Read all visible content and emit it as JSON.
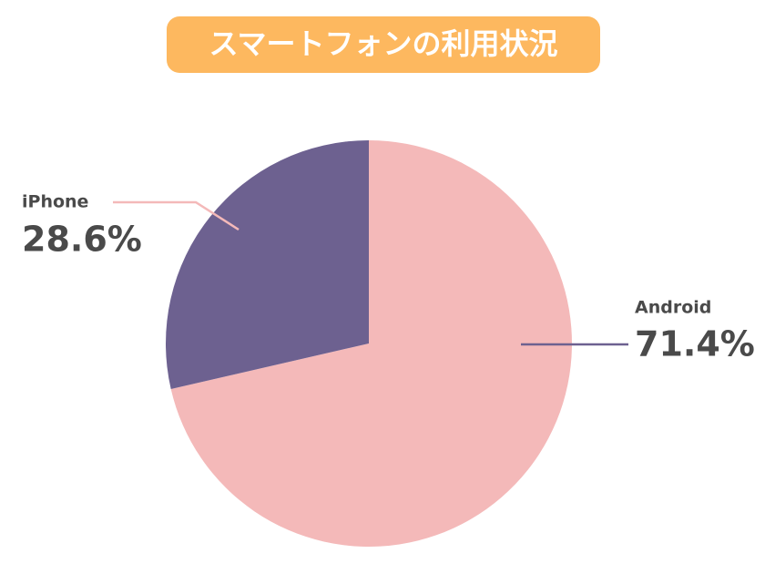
{
  "chart_data": {
    "type": "pie",
    "title": "スマートフォンの利用状況",
    "categories": [
      "Android",
      "iPhone"
    ],
    "values": [
      71.4,
      28.6
    ],
    "value_labels": [
      "71.4%",
      "28.6%"
    ],
    "colors": [
      "#f4b9b9",
      "#6d6190"
    ]
  }
}
